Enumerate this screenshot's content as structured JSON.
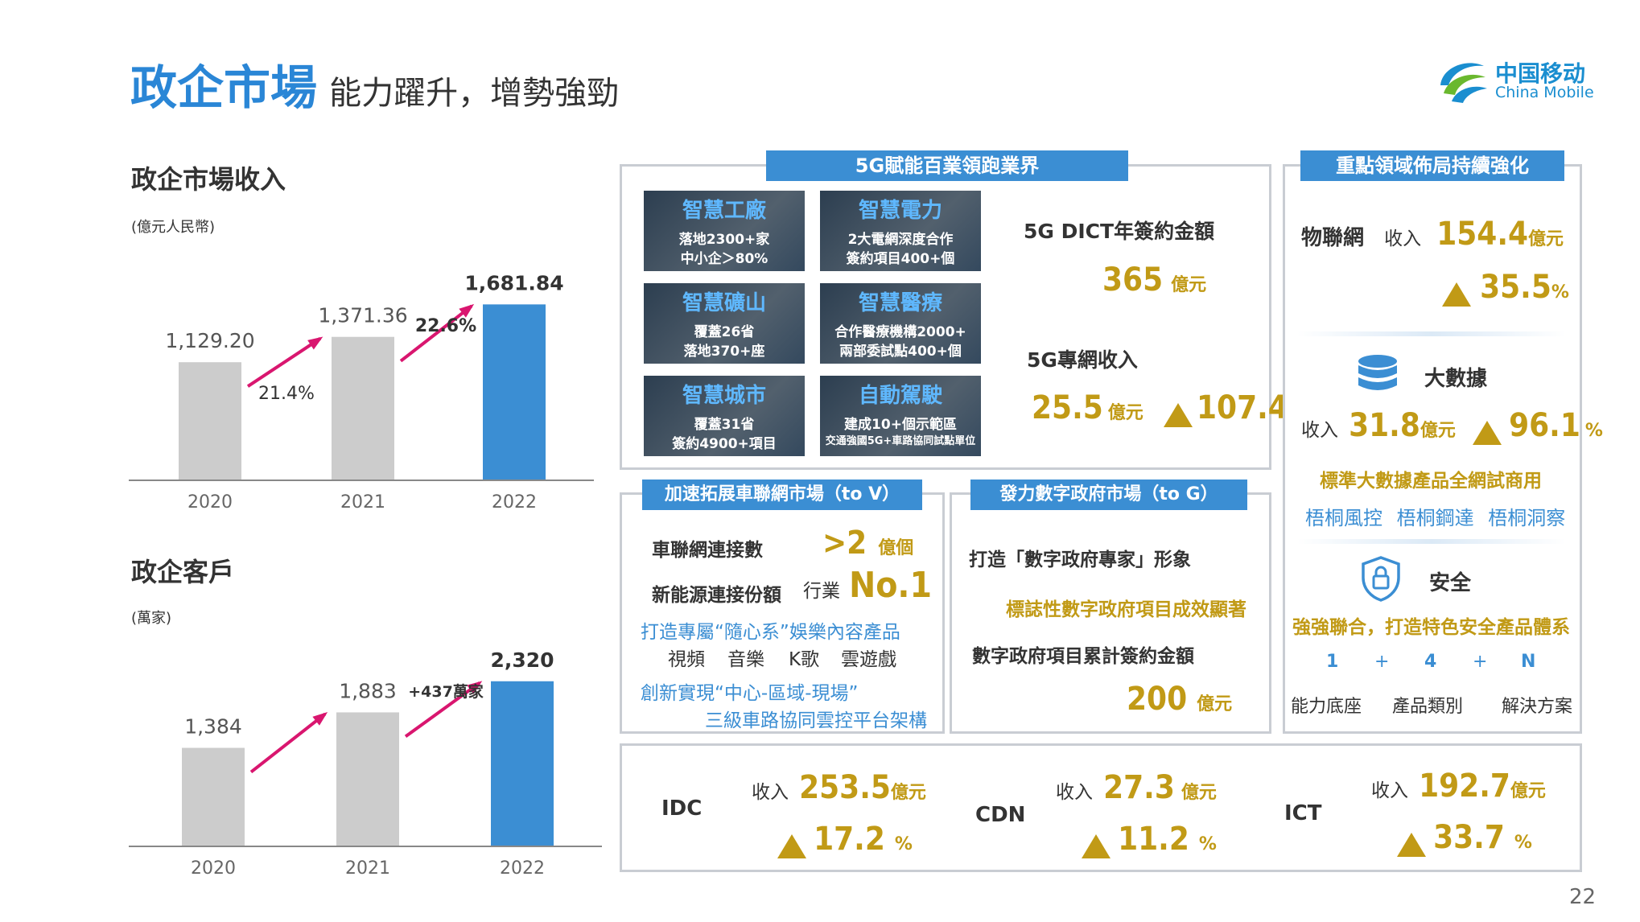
{
  "header": {
    "title": "政企市場",
    "subtitle": "能力躍升，增勢強勁",
    "logo_cn": "中国移动",
    "logo_en": "China Mobile"
  },
  "page_number": "22",
  "colors": {
    "blue": "#3b8ed3",
    "gray_bar": "#cccccc",
    "gold": "#c19a16",
    "arrow": "#d9166f"
  },
  "chart_data": [
    {
      "type": "bar",
      "title": "政企市場收入",
      "unit": "(億元人民幣)",
      "categories": [
        "2020",
        "2021",
        "2022"
      ],
      "values": [
        1129.2,
        1371.36,
        1681.84
      ],
      "value_labels": [
        "1,129.20",
        "1,371.36",
        "1,681.84"
      ],
      "growth_labels": [
        "21.4%",
        "22.6%"
      ],
      "ylim": [
        0,
        1900
      ]
    },
    {
      "type": "bar",
      "title": "政企客戶",
      "unit": "(萬家)",
      "categories": [
        "2020",
        "2021",
        "2022"
      ],
      "values": [
        1384,
        1883,
        2320
      ],
      "value_labels": [
        "1,384",
        "1,883",
        "2,320"
      ],
      "growth_labels": [
        "+437萬家"
      ],
      "ylim": [
        0,
        2600
      ]
    }
  ],
  "fiveg": {
    "header": "5G賦能百業領跑業界",
    "tiles": [
      {
        "title": "智慧工廠",
        "line1": "落地2300+家",
        "line2": "中小企＞80%"
      },
      {
        "title": "智慧電力",
        "line1": "2大電網深度合作",
        "line2": "簽約項目400+個"
      },
      {
        "title": "智慧礦山",
        "line1": "覆蓋26省",
        "line2": "落地370+座"
      },
      {
        "title": "智慧醫療",
        "line1": "合作醫療機構2000+",
        "line2": "兩部委試點400+個"
      },
      {
        "title": "智慧城市",
        "line1": "覆蓋31省",
        "line2": "簽約4900+項目"
      },
      {
        "title": "自動駕駛",
        "line1": "建成10+個示範區",
        "line2": "交通強國5G+車路協同試點單位"
      }
    ],
    "dict_label": "5G DICT年簽約金額",
    "dict_value": "365",
    "dict_unit": "億元",
    "private_label": "5G專網收入",
    "private_value": "25.5",
    "private_unit": "億元",
    "private_growth": "107.4",
    "pct": "%"
  },
  "key": {
    "header": "重點領域佈局持續強化",
    "iot_label": "物聯網",
    "income": "收入",
    "iot_value": "154.4",
    "unit": "億元",
    "iot_growth": "35.5",
    "pct": "%",
    "bigdata_label": "大數據",
    "bigdata_value": "31.8",
    "bigdata_growth": "96.1",
    "bigdata_note": "標準大數據產品全網試商用",
    "products": [
      "梧桐風控",
      "梧桐鋼達",
      "梧桐洞察"
    ],
    "security_label": "安全",
    "security_note": "強強聯合，打造特色安全產品體系",
    "formula": [
      "1",
      "+",
      "4",
      "+",
      "N"
    ],
    "formula_labels": [
      "能力底座",
      "產品類別",
      "解決方案"
    ]
  },
  "v2x": {
    "header": "加速拓展車聯網市場（to V）",
    "conn_label": "車聯網連接數",
    "conn_value": ">2",
    "conn_unit": "億個",
    "nev_label": "新能源連接份額",
    "nev_industry": "行業",
    "nev_value": "No.1",
    "ent_line": "打造專屬“隨心系”娛樂內容產品",
    "ent_items": [
      "視頻",
      "音樂",
      "K歌",
      "雲遊戲"
    ],
    "arch_line1": "創新實現“中心-區域-現場”",
    "arch_line2": "三級車路協同雲控平台架構"
  },
  "gov": {
    "header": "發力數字政府市場（to G）",
    "line1": "打造「數字政府專家」形象",
    "line2": "標誌性數字政府項目成效顯著",
    "line3": "數字政府項目累計簽約金額",
    "value": "200",
    "unit": "億元"
  },
  "bottom": {
    "income": "收入",
    "unit": "億元",
    "pct": "%",
    "items": [
      {
        "name": "IDC",
        "value": "253.5",
        "growth": "17.2"
      },
      {
        "name": "CDN",
        "value": "27.3",
        "growth": "11.2"
      },
      {
        "name": "ICT",
        "value": "192.7",
        "growth": "33.7"
      }
    ]
  }
}
